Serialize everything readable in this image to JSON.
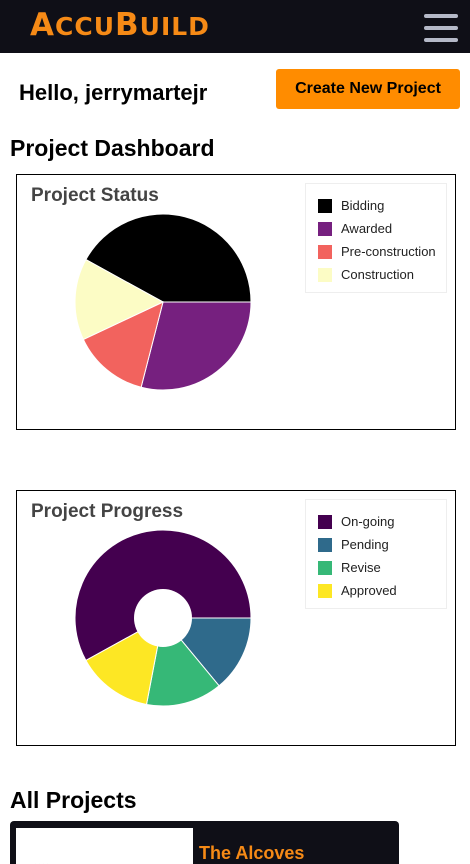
{
  "header": {
    "logo_first": "A",
    "logo_rest": "CCU",
    "logo_b": "B",
    "logo_rest2": "UILD",
    "menu_icon": "hamburger-icon"
  },
  "greeting": "Hello, jerrymartejr",
  "create_button": "Create New Project",
  "dashboard_title": "Project Dashboard",
  "status_chart": {
    "title": "Project Status",
    "legend": [
      {
        "label": "Bidding",
        "color": "#000000"
      },
      {
        "label": "Awarded",
        "color": "#76207f"
      },
      {
        "label": "Pre-construction",
        "color": "#f2635e"
      },
      {
        "label": "Construction",
        "color": "#fcfcc5"
      }
    ]
  },
  "progress_chart": {
    "title": "Project Progress",
    "legend": [
      {
        "label": "On-going",
        "color": "#44004f"
      },
      {
        "label": "Pending",
        "color": "#2f6a8b"
      },
      {
        "label": "Revise",
        "color": "#36b877"
      },
      {
        "label": "Approved",
        "color": "#fde724"
      }
    ]
  },
  "chart_data": [
    {
      "type": "pie",
      "title": "Project Status",
      "categories": [
        "Bidding",
        "Awarded",
        "Pre-construction",
        "Construction"
      ],
      "values": [
        42,
        29,
        14,
        15
      ],
      "colors": [
        "#000000",
        "#76207f",
        "#f2635e",
        "#fcfcc5"
      ],
      "legend": "top-right"
    },
    {
      "type": "pie",
      "title": "Project Progress",
      "categories": [
        "On-going",
        "Pending",
        "Revise",
        "Approved"
      ],
      "values": [
        58,
        14,
        14,
        14
      ],
      "colors": [
        "#44004f",
        "#2f6a8b",
        "#36b877",
        "#fde724"
      ],
      "legend": "top-right"
    }
  ],
  "all_projects_title": "All Projects",
  "projects": [
    {
      "name": "The Alcoves"
    }
  ]
}
